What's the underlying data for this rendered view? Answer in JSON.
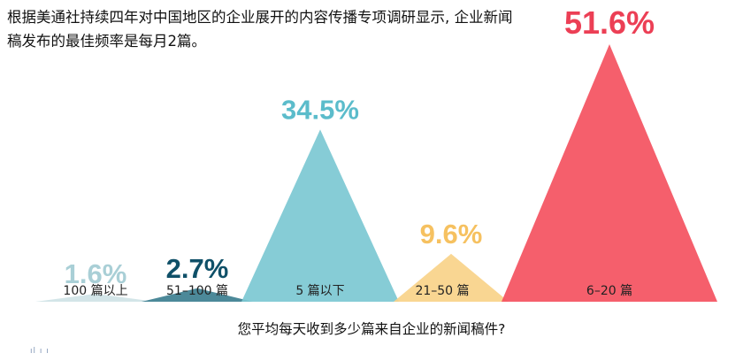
{
  "intro_text": "根据美通社持续四年对中国地区的企业展开的内容传播专项调研显示, 企业新闻稿发布的最佳频率是每月2篇。",
  "chart_data": {
    "type": "bar",
    "title": "",
    "xlabel": "您平均每天收到多少篇来自企业的新闻稿件?",
    "ylabel": "",
    "ylim": [
      0,
      51.6
    ],
    "categories": [
      "100 篇以上",
      "51–100 篇",
      "5 篇以下",
      "21–50 篇",
      "6–20 篇"
    ],
    "values": [
      1.6,
      2.7,
      34.5,
      9.6,
      51.6
    ],
    "value_labels": [
      "1.6%",
      "2.7%",
      "34.5%",
      "9.6%",
      "51.6%"
    ],
    "colors": [
      "#cfe3e6",
      "#3d7f90",
      "#7cc8d2",
      "#f8d289",
      "#f4515f"
    ],
    "label_colors": [
      "#a9cfd6",
      "#0f5068",
      "#5bbccb",
      "#f6c160",
      "#ec3f55"
    ],
    "grid": false,
    "legend": "none"
  },
  "footnote": "ıl ı ı"
}
